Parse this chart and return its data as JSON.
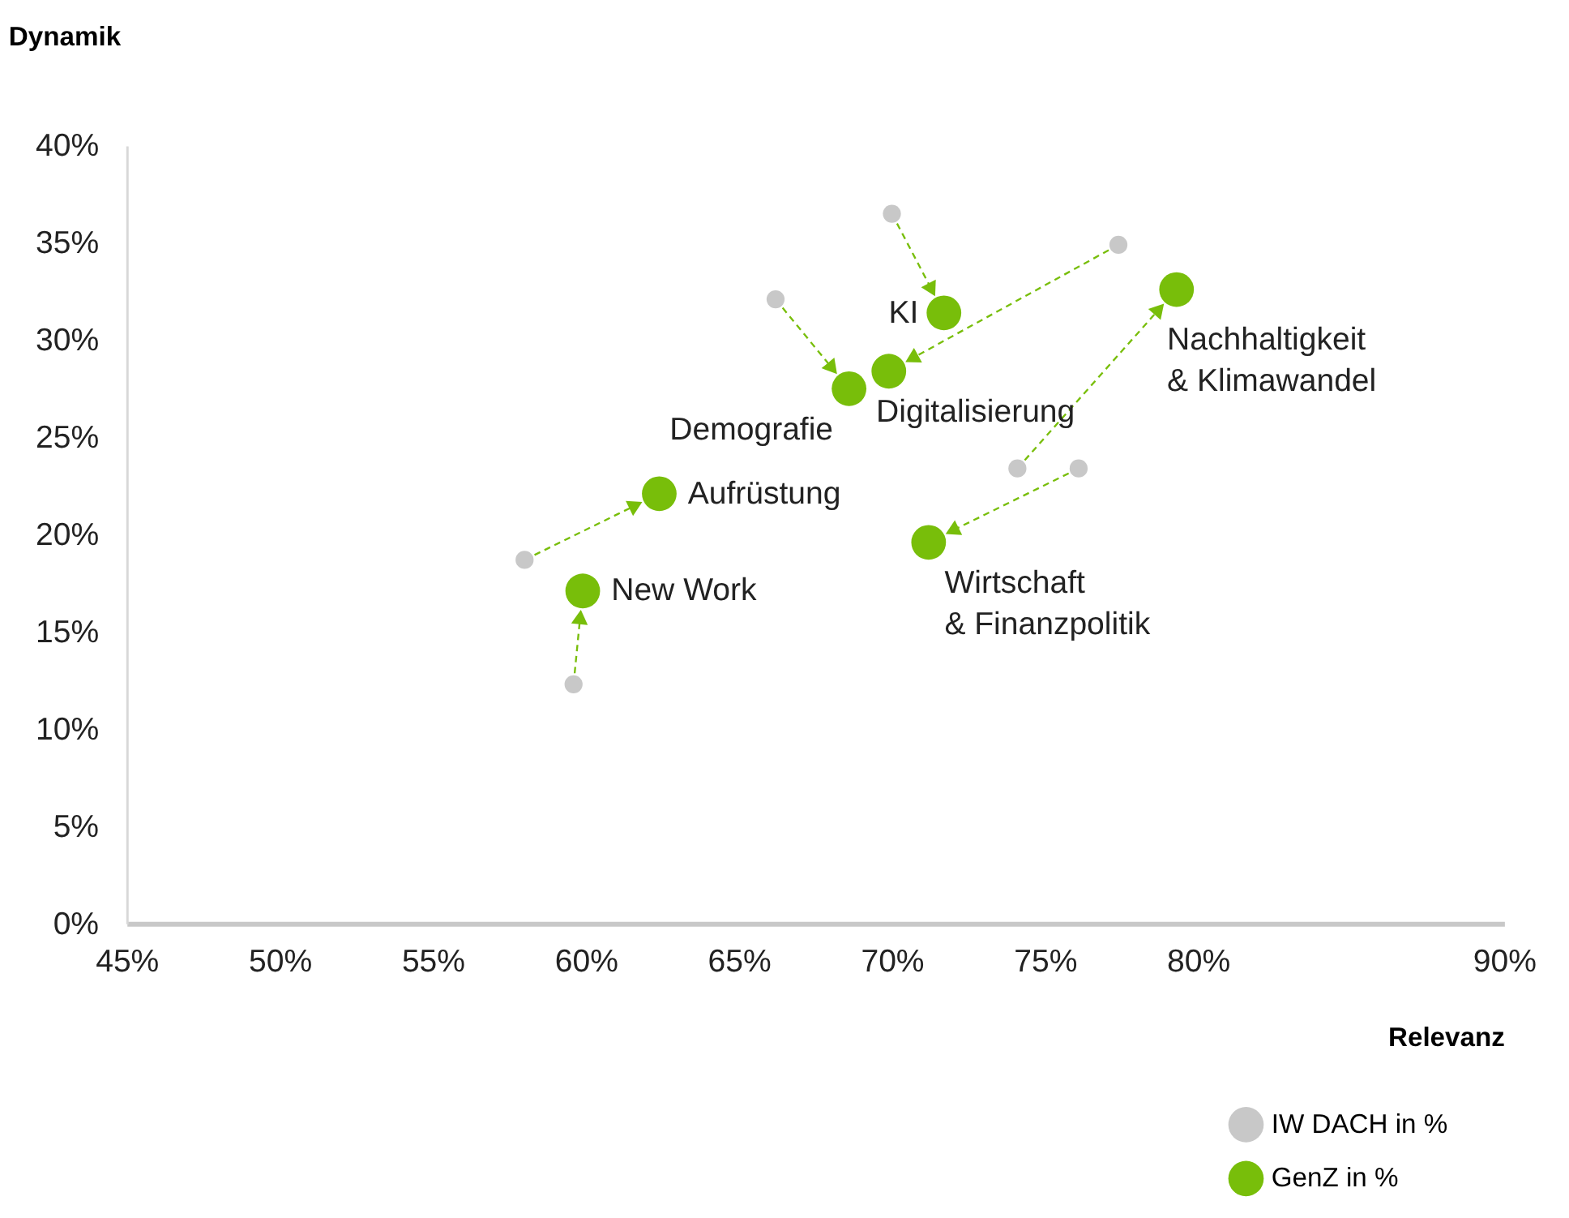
{
  "chart_data": {
    "type": "scatter",
    "xlabel": "Relevanz",
    "ylabel": "Dynamik",
    "xlim": [
      45,
      90
    ],
    "xticks": [
      {
        "value": 45,
        "label": "45%"
      },
      {
        "value": 50,
        "label": "50%"
      },
      {
        "value": 55,
        "label": "55%"
      },
      {
        "value": 60,
        "label": "60%"
      },
      {
        "value": 65,
        "label": "65%"
      },
      {
        "value": 70,
        "label": "70%"
      },
      {
        "value": 75,
        "label": "75%"
      },
      {
        "value": 80,
        "label": "80%"
      },
      {
        "value": 90,
        "label": "90%"
      }
    ],
    "ylim": [
      0,
      40
    ],
    "yticks": [
      {
        "value": 0,
        "label": "0%"
      },
      {
        "value": 5,
        "label": "5%"
      },
      {
        "value": 10,
        "label": "10%"
      },
      {
        "value": 15,
        "label": "15%"
      },
      {
        "value": 20,
        "label": "20%"
      },
      {
        "value": 25,
        "label": "25%"
      },
      {
        "value": 30,
        "label": "30%"
      },
      {
        "value": 35,
        "label": "35%"
      },
      {
        "value": 40,
        "label": "40%"
      }
    ],
    "grid": false,
    "legend": "bottom right",
    "marker": "circle",
    "series": [
      {
        "name": "IW DACH in %",
        "color": "#c8c8c8",
        "x": [
          70.0,
          77.4,
          74.1,
          76.1,
          66.2,
          58.0,
          59.6
        ],
        "values": [
          36.5,
          34.9,
          23.4,
          23.4,
          32.1,
          18.7,
          12.3
        ]
      },
      {
        "name": "GenZ in %",
        "color": "#78be0a",
        "x": [
          71.7,
          69.9,
          79.3,
          71.2,
          68.6,
          62.4,
          59.9
        ],
        "values": [
          31.4,
          28.4,
          32.6,
          19.6,
          27.5,
          22.1,
          17.1
        ]
      }
    ],
    "annotations": [
      {
        "text": "KI",
        "x": 71.7,
        "y": 31.4
      },
      {
        "text": "Digitalisierung",
        "x": 69.9,
        "y": 28.4
      },
      {
        "text": "Nachhaltigkeit\n& Klimawandel",
        "x": 79.3,
        "y": 32.6
      },
      {
        "text": "Wirtschaft\n& Finanzpolitik",
        "x": 71.2,
        "y": 19.6
      },
      {
        "text": "Demografie",
        "x": 68.6,
        "y": 27.5
      },
      {
        "text": "Aufrüstung",
        "x": 62.4,
        "y": 22.1
      },
      {
        "text": "New Work",
        "x": 59.9,
        "y": 17.1
      }
    ]
  }
}
